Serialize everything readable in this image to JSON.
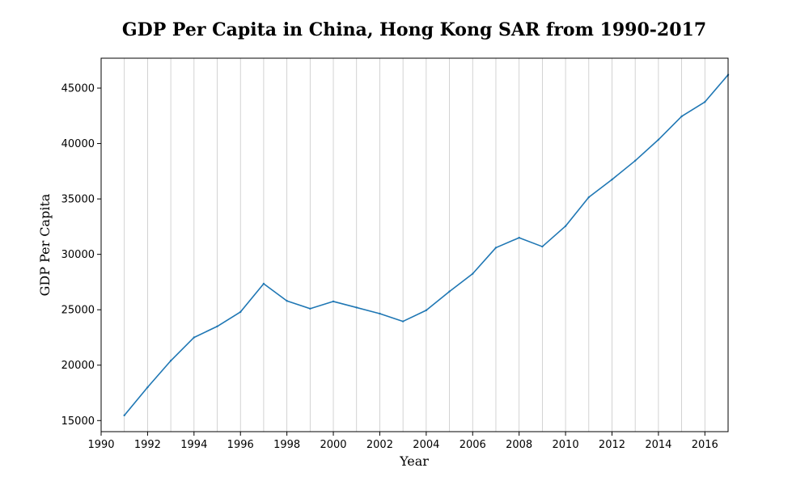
{
  "chart_data": {
    "type": "line",
    "title": "GDP Per Capita in China, Hong Kong SAR from 1990-2017",
    "xlabel": "Year",
    "ylabel": "GDP Per Capita",
    "xlim": [
      1990,
      2017
    ],
    "ylim": [
      14000,
      47700
    ],
    "xticks": [
      1990,
      1992,
      1994,
      1996,
      1998,
      2000,
      2002,
      2004,
      2006,
      2008,
      2010,
      2012,
      2014,
      2016
    ],
    "yticks": [
      15000,
      20000,
      25000,
      30000,
      35000,
      40000,
      45000
    ],
    "grid": "vertical lines at every year",
    "line_color": "#1f77b4",
    "series": [
      {
        "x": [
          1991,
          1992,
          1993,
          1994,
          1995,
          1996,
          1997,
          1998,
          1999,
          2000,
          2001,
          2002,
          2003,
          2004,
          2005,
          2006,
          2007,
          2008,
          2009,
          2010,
          2011,
          2012,
          2013,
          2014,
          2015,
          2016,
          2017
        ],
        "values": [
          15470,
          18000,
          20400,
          22500,
          23500,
          24800,
          27350,
          25800,
          25100,
          25750,
          25200,
          24650,
          23950,
          24950,
          26650,
          28250,
          30600,
          31500,
          30700,
          32550,
          35150,
          36750,
          38450,
          40350,
          42450,
          43750,
          46200
        ]
      }
    ]
  }
}
